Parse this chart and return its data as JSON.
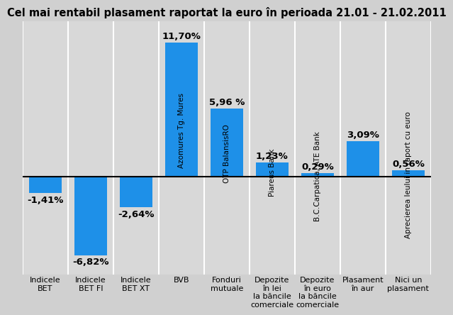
{
  "title": "Cel mai rentabil plasament raportat la euro în perioada 21.01 - 21.02.2011",
  "values": [
    -1.41,
    -6.82,
    -2.64,
    11.7,
    5.96,
    1.23,
    0.29,
    3.09,
    0.56
  ],
  "bar_labels": [
    "-1,41%",
    "-6,82%",
    "-2,64%",
    "11,70%",
    "5,96 %",
    "1,23%",
    "0,29%",
    "3,09%",
    "0,56%"
  ],
  "bar_color": "#1e90e8",
  "background_color": "#d0d0d0",
  "plot_bg_color": "#d8d8d8",
  "bar_rotated_labels": [
    "",
    "",
    "",
    "Azomures Tg. Mures",
    "OTP BalansisRO",
    "Piareus Bank",
    "B.C.Carpatica, ATE Bank",
    "",
    "Aprecierea leului in raport cu euro"
  ],
  "x_labels": [
    "Indicele\nBET",
    "Indicele\nBET FI",
    "Indicele\nBET XT",
    "BVB",
    "Fonduri\nmutuale",
    "Depozite\nîn lei\nla băncile\ncomerciale",
    "Depozite\nîn euro\nla băncile\ncomerciale",
    "Plasament\nîn aur",
    "Nici un\nplasament"
  ],
  "ylim": [
    -8.5,
    13.5
  ],
  "title_fontsize": 10.5,
  "value_fontsize": 9.5,
  "xlabel_fontsize": 8.0,
  "rotated_label_fontsize": 7.5
}
